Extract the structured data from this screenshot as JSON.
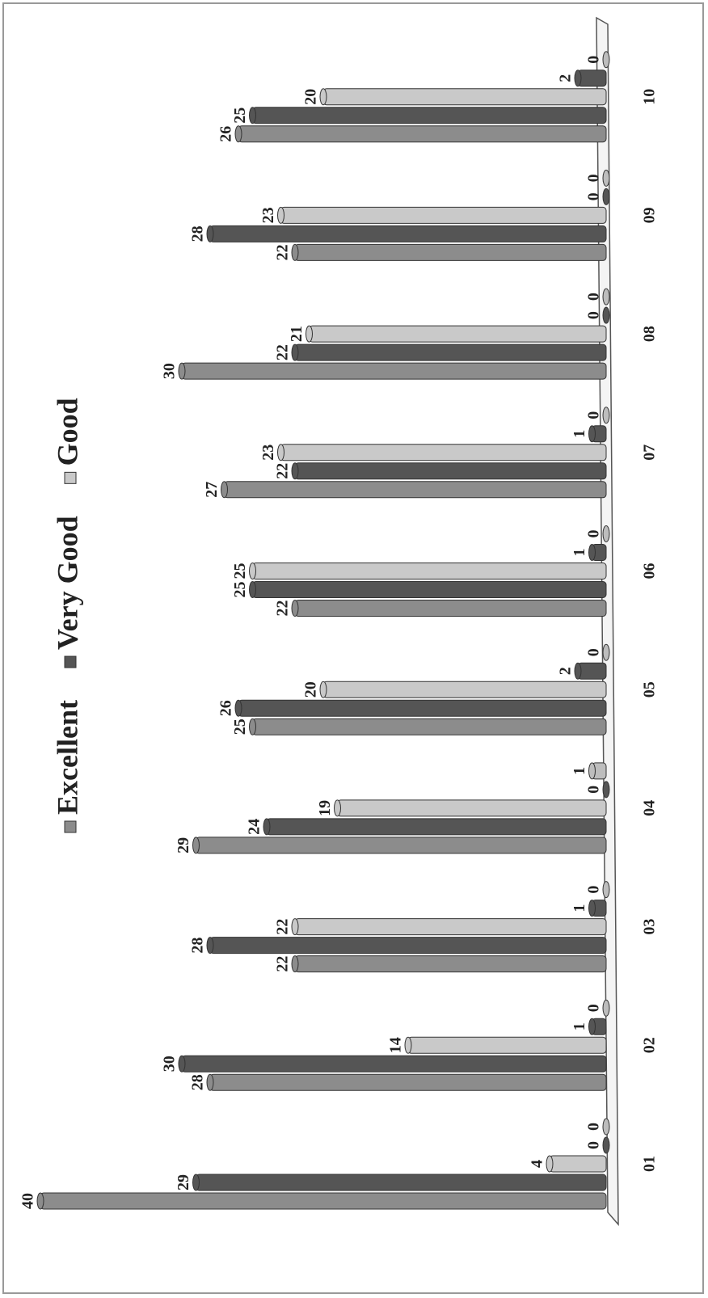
{
  "chart_data": {
    "type": "bar",
    "orientation": "horizontal",
    "categories": [
      "01",
      "02",
      "03",
      "04",
      "05",
      "06",
      "07",
      "08",
      "09",
      "10"
    ],
    "series": [
      {
        "name": "Excellent",
        "color": "#8c8c8c",
        "values": [
          40,
          28,
          22,
          29,
          25,
          22,
          27,
          30,
          22,
          26
        ]
      },
      {
        "name": "Very Good",
        "color": "#555555",
        "values": [
          29,
          30,
          28,
          24,
          26,
          25,
          22,
          22,
          28,
          25
        ]
      },
      {
        "name": "Good",
        "color": "#c9c9c9",
        "values": [
          4,
          14,
          22,
          19,
          20,
          25,
          23,
          21,
          23,
          20
        ]
      },
      {
        "color": "#555555",
        "values": [
          0,
          1,
          1,
          0,
          2,
          1,
          1,
          0,
          0,
          2
        ]
      },
      {
        "color": "#bdbdbd",
        "values": [
          0,
          0,
          0,
          1,
          0,
          0,
          0,
          0,
          0,
          0
        ]
      }
    ]
  }
}
